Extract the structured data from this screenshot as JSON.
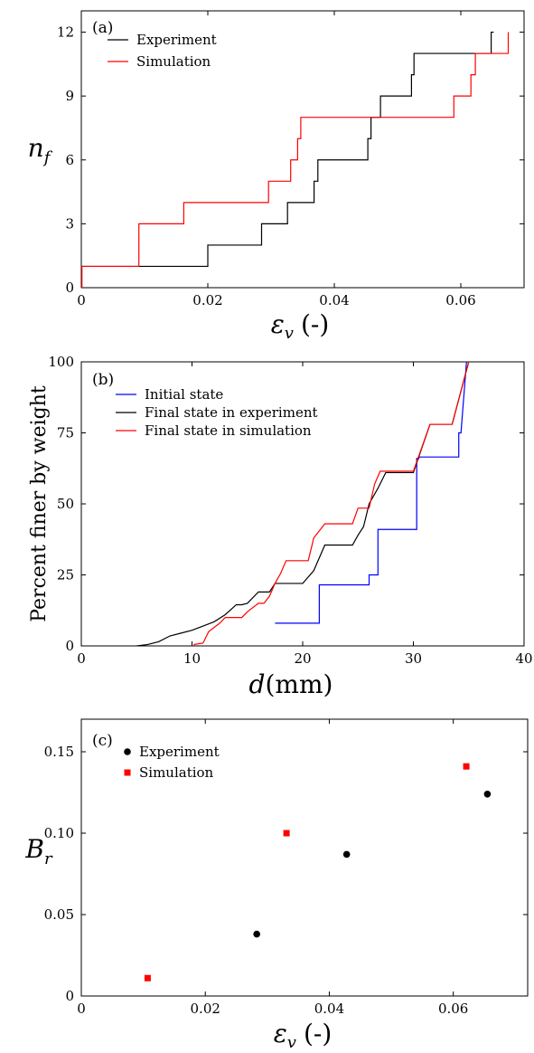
{
  "chart_data": [
    {
      "type": "line",
      "panel_label": "(a)",
      "xlabel": "ε",
      "xlabel_sub": "v",
      "xlabel_unit": "(-)",
      "ylabel": "n",
      "ylabel_sub": "f",
      "xlim": [
        0,
        0.07
      ],
      "ylim": [
        0,
        13
      ],
      "xticks": [
        0,
        0.02,
        0.04,
        0.06
      ],
      "xtick_labels": [
        "0",
        "0.02",
        "0.04",
        "0.06"
      ],
      "yticks": [
        0,
        3,
        6,
        9,
        12
      ],
      "ytick_labels": [
        "0",
        "3",
        "6",
        "9",
        "12"
      ],
      "legend_position": "top-left",
      "series": [
        {
          "name": "Experiment",
          "color": "#000000",
          "x": [
            0,
            0,
            0.02,
            0.02,
            0.0285,
            0.0285,
            0.0326,
            0.0326,
            0.0368,
            0.0368,
            0.0374,
            0.0374,
            0.0453,
            0.0453,
            0.0458,
            0.0458,
            0.0473,
            0.0473,
            0.0522,
            0.0522,
            0.0526,
            0.0526,
            0.0558,
            0.0558,
            0.0648,
            0.0648,
            0.0652
          ],
          "y": [
            0,
            1,
            1,
            2,
            2,
            3,
            3,
            4,
            4,
            5,
            5,
            6,
            6,
            7,
            7,
            8,
            8,
            9,
            9,
            10,
            10,
            11,
            11,
            11,
            11,
            12,
            12
          ]
        },
        {
          "name": "Simulation",
          "color": "#ff0000",
          "x": [
            0,
            0.0001,
            0.0001,
            0.0091,
            0.0091,
            0.0162,
            0.0162,
            0.0296,
            0.0296,
            0.0331,
            0.0331,
            0.0342,
            0.0342,
            0.0347,
            0.0347,
            0.0589,
            0.0589,
            0.0616,
            0.0616,
            0.0623,
            0.0623,
            0.0633,
            0.0633,
            0.0675,
            0.0675
          ],
          "y": [
            0,
            0,
            1,
            1,
            3,
            3,
            4,
            4,
            5,
            5,
            6,
            6,
            7,
            7,
            8,
            8,
            9,
            9,
            10,
            10,
            11,
            11,
            11,
            11,
            12
          ]
        }
      ]
    },
    {
      "type": "line",
      "panel_label": "(b)",
      "xlabel": "d",
      "xlabel_unit": "(mm)",
      "ylabel": "Percent finer by weight",
      "xlim": [
        0,
        40
      ],
      "ylim": [
        0,
        100
      ],
      "xticks": [
        0,
        10,
        20,
        30,
        40
      ],
      "xtick_labels": [
        "0",
        "10",
        "20",
        "30",
        "40"
      ],
      "yticks": [
        0,
        25,
        50,
        75,
        100
      ],
      "ytick_labels": [
        "0",
        "25",
        "50",
        "75",
        "100"
      ],
      "legend_position": "top-left",
      "series": [
        {
          "name": "Initial state",
          "color": "#0000ff",
          "x": [
            17.5,
            21.5,
            21.5,
            26.0,
            26.0,
            26.8,
            26.8,
            30.3,
            30.3,
            30.5,
            30.5,
            34.1,
            34.1,
            34.3,
            34.8
          ],
          "y": [
            8,
            8,
            21.5,
            21.5,
            25,
            25,
            41,
            41,
            66,
            66,
            66.5,
            66.5,
            75,
            75,
            100
          ]
        },
        {
          "name": "Final state in experiment",
          "color": "#000000",
          "x": [
            5.0,
            6.0,
            7.0,
            8.0,
            9.0,
            10.0,
            11.0,
            12.0,
            13.0,
            14.0,
            14.5,
            15.0,
            16.0,
            17.0,
            17.5,
            18.5,
            20.0,
            21.0,
            22.0,
            22.5,
            23.0,
            24.5,
            25.0,
            25.5,
            26.0,
            26.8,
            27.5,
            28.5,
            30.0,
            31.5,
            33.5,
            35.0
          ],
          "y": [
            0,
            0.5,
            1.5,
            3.5,
            4.5,
            5.5,
            7,
            8.5,
            11,
            14.5,
            14.5,
            15,
            19,
            19,
            22,
            22,
            22,
            26.5,
            35.5,
            35.5,
            35.5,
            35.5,
            39,
            42,
            50,
            55.5,
            61,
            61,
            61,
            78,
            78,
            100
          ]
        },
        {
          "name": "Final state in simulation",
          "color": "#ff0000",
          "x": [
            10.2,
            10.2,
            11.0,
            11.5,
            12.5,
            13.0,
            14.0,
            14.5,
            15.0,
            16.0,
            16.5,
            17.0,
            17.5,
            18.0,
            18.5,
            19.5,
            20.5,
            21.0,
            22.0,
            23.0,
            24.5,
            25.0,
            26.0,
            26.5,
            27.0,
            28.0,
            30.0,
            31.5,
            33.5,
            35.0
          ],
          "y": [
            0,
            0.5,
            1,
            5,
            8,
            10,
            10,
            10,
            12,
            15,
            15,
            17.5,
            22,
            25.5,
            30,
            30,
            30,
            38,
            43,
            43,
            43,
            48.5,
            48.5,
            57,
            61.5,
            61.5,
            61.5,
            78,
            78,
            100
          ]
        }
      ]
    },
    {
      "type": "scatter",
      "panel_label": "(c)",
      "xlabel": "ε",
      "xlabel_sub": "v",
      "xlabel_unit": "(-)",
      "ylabel": "B",
      "ylabel_sub": "r",
      "xlim": [
        0,
        0.072
      ],
      "ylim": [
        0,
        0.17
      ],
      "xticks": [
        0,
        0.02,
        0.04,
        0.06
      ],
      "xtick_labels": [
        "0",
        "0.02",
        "0.04",
        "0.06"
      ],
      "yticks": [
        0,
        0.05,
        0.1,
        0.15
      ],
      "ytick_labels": [
        "0",
        "0.05",
        "0.10",
        "0.15"
      ],
      "legend_position": "top-left",
      "series": [
        {
          "name": "Experiment",
          "color": "#000000",
          "marker": "circle",
          "x": [
            0.0283,
            0.0428,
            0.0655
          ],
          "y": [
            0.038,
            0.087,
            0.124
          ]
        },
        {
          "name": "Simulation",
          "color": "#ff0000",
          "marker": "square",
          "x": [
            0.0107,
            0.0331,
            0.0621
          ],
          "y": [
            0.011,
            0.1,
            0.141
          ]
        }
      ]
    }
  ]
}
